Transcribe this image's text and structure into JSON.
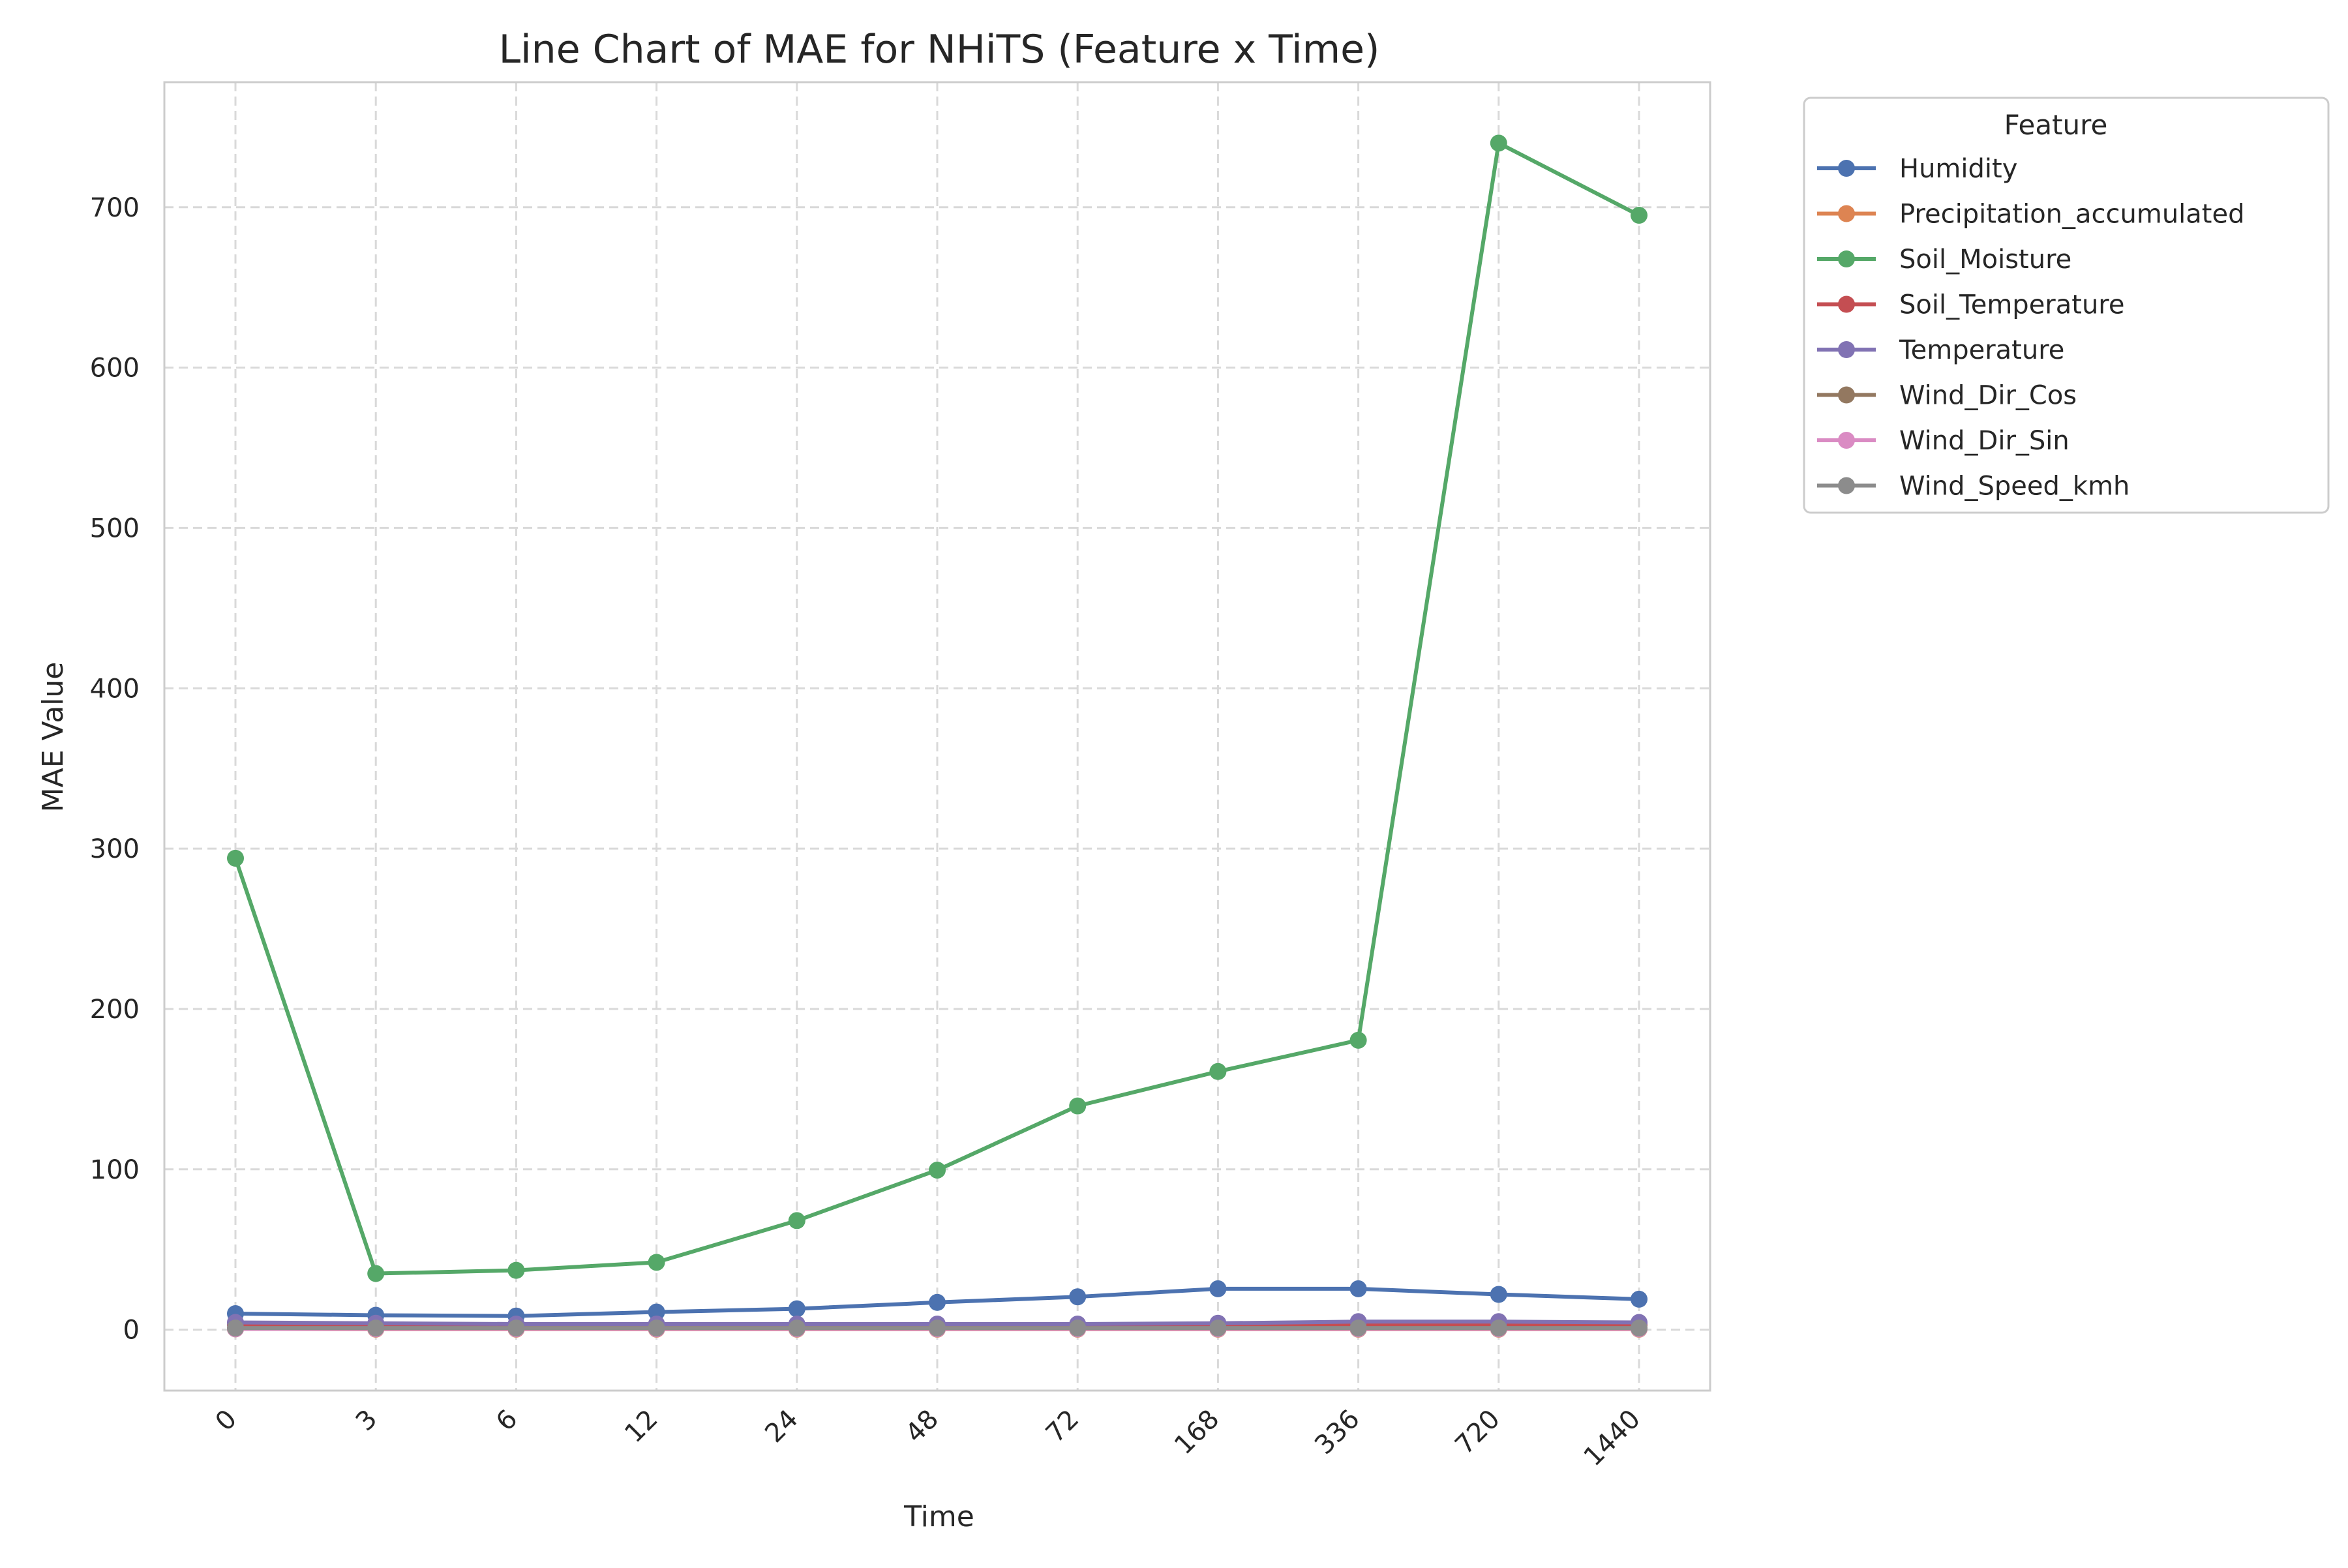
{
  "chart_data": {
    "type": "line",
    "title": "Line Chart of MAE for NHiTS (Feature x Time)",
    "xlabel": "Time",
    "ylabel": "MAE Value",
    "categories": [
      "0",
      "3",
      "6",
      "12",
      "24",
      "48",
      "72",
      "168",
      "336",
      "720",
      "1440"
    ],
    "ylim": [
      -38,
      778
    ],
    "yticks": [
      0,
      100,
      200,
      300,
      400,
      500,
      600,
      700
    ],
    "grid": true,
    "legend": {
      "title": "Feature",
      "placement": "outside-top-right"
    },
    "series": [
      {
        "name": "Humidity",
        "color": "#4c72b0",
        "values": [
          10,
          9,
          8.5,
          11,
          13,
          17,
          20.5,
          25.5,
          25.5,
          22,
          19
        ]
      },
      {
        "name": "Precipitation_accumulated",
        "color": "#dd8452",
        "values": [
          0.5,
          0.3,
          0.3,
          0.3,
          0.3,
          0.3,
          0.3,
          0.3,
          0.3,
          0.3,
          0.3
        ]
      },
      {
        "name": "Soil_Moisture",
        "color": "#55a868",
        "values": [
          294,
          35,
          37,
          42,
          68,
          99.5,
          139.5,
          161,
          180.5,
          740,
          695
        ]
      },
      {
        "name": "Soil_Temperature",
        "color": "#c44e52",
        "values": [
          3,
          2,
          2,
          2,
          2,
          2,
          2,
          2.5,
          3,
          3,
          3
        ]
      },
      {
        "name": "Temperature",
        "color": "#8172b3",
        "values": [
          4.5,
          4,
          3.5,
          3.5,
          3.5,
          3.5,
          3.5,
          4,
          5,
          5,
          4.5
        ]
      },
      {
        "name": "Wind_Dir_Cos",
        "color": "#937860",
        "values": [
          0.6,
          0.6,
          0.6,
          0.6,
          0.6,
          0.6,
          0.6,
          0.6,
          0.6,
          0.6,
          0.6
        ]
      },
      {
        "name": "Wind_Dir_Sin",
        "color": "#da8bc3",
        "values": [
          0.5,
          0.5,
          0.5,
          0.5,
          0.5,
          0.5,
          0.5,
          0.5,
          0.5,
          0.5,
          0.5
        ]
      },
      {
        "name": "Wind_Speed_kmh",
        "color": "#8c8c8c",
        "values": [
          1,
          1,
          1,
          1,
          1,
          1,
          1,
          1,
          1,
          1,
          1
        ]
      }
    ]
  }
}
